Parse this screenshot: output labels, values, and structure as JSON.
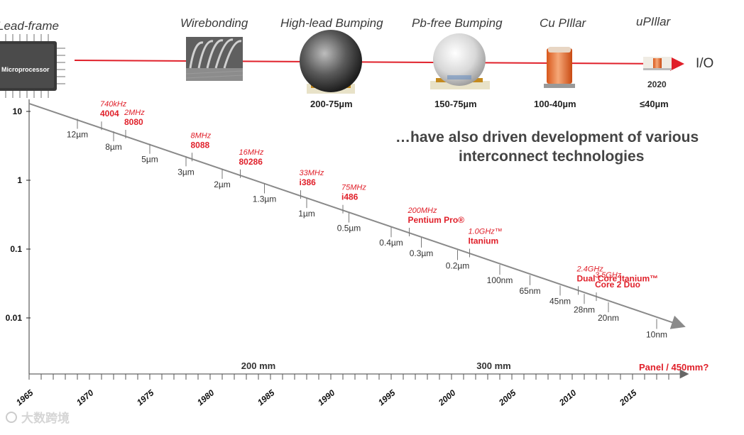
{
  "packaging": {
    "items": [
      {
        "label": "Lead-frame",
        "range": "",
        "chip_text": "Microprocessor"
      },
      {
        "label": "Wirebonding",
        "range": ""
      },
      {
        "label": "High-lead Bumping",
        "range": "200-75µm"
      },
      {
        "label": "Pb-free Bumping",
        "range": "150-75µm"
      },
      {
        "label": "Cu PIllar",
        "range": "100-40µm"
      },
      {
        "label": "uPIllar",
        "range": "≤40µm",
        "year": "2020"
      }
    ],
    "io_label": "I/O"
  },
  "headline": {
    "line1": "…have also driven development of various",
    "line2": "interconnect technologies"
  },
  "chart_data": {
    "type": "line",
    "title": "",
    "y_scale": "log",
    "ylim": [
      0.002,
      15
    ],
    "xlim": [
      1965,
      2020
    ],
    "y_ticks": [
      {
        "value": 10,
        "label": "10"
      },
      {
        "value": 1,
        "label": "1"
      },
      {
        "value": 0.1,
        "label": "0.1"
      },
      {
        "value": 0.01,
        "label": "0.01"
      }
    ],
    "x_ticks": [
      "1965",
      "1970",
      "1975",
      "1980",
      "1985",
      "1990",
      "1995",
      "2000",
      "2005",
      "2010",
      "2015"
    ],
    "trend": {
      "x": [
        1965,
        2018
      ],
      "y": [
        13,
        0.008
      ]
    },
    "process_nodes": [
      {
        "year": 1969,
        "value": 10.0,
        "label": "12µm"
      },
      {
        "year": 1972,
        "value": 6.5,
        "label": "8µm"
      },
      {
        "year": 1975,
        "value": 4.2,
        "label": "5µm"
      },
      {
        "year": 1978,
        "value": 2.7,
        "label": "3µm"
      },
      {
        "year": 1981,
        "value": 1.75,
        "label": "2µm"
      },
      {
        "year": 1984.5,
        "value": 1.05,
        "label": "1.3µm"
      },
      {
        "year": 1988,
        "value": 0.65,
        "label": "1µm"
      },
      {
        "year": 1991.5,
        "value": 0.4,
        "label": "0.5µm"
      },
      {
        "year": 1995,
        "value": 0.25,
        "label": "0.4µm"
      },
      {
        "year": 1997.5,
        "value": 0.18,
        "label": "0.3µm"
      },
      {
        "year": 2000.5,
        "value": 0.115,
        "label": "0.2µm"
      },
      {
        "year": 2004,
        "value": 0.071,
        "label": "100nm"
      },
      {
        "year": 2006.5,
        "value": 0.05,
        "label": "65nm"
      },
      {
        "year": 2009,
        "value": 0.036,
        "label": "45nm"
      },
      {
        "year": 2011,
        "value": 0.027,
        "label": "28nm"
      },
      {
        "year": 2013,
        "value": 0.02,
        "label": "20nm"
      },
      {
        "year": 2017,
        "value": 0.0115,
        "label": "10nm"
      }
    ],
    "processors": [
      {
        "year": 1971,
        "value": 7.6,
        "freq": "740kHz",
        "name": "4004"
      },
      {
        "year": 1973,
        "value": 5.6,
        "freq": "2MHz",
        "name": "8080"
      },
      {
        "year": 1978.5,
        "value": 2.5,
        "freq": "8MHz",
        "name": "8088"
      },
      {
        "year": 1982.5,
        "value": 1.38,
        "freq": "16MHz",
        "name": "80286"
      },
      {
        "year": 1987.5,
        "value": 0.69,
        "freq": "33MHz",
        "name": "i386"
      },
      {
        "year": 1991,
        "value": 0.42,
        "freq": "75MHz",
        "name": "i486"
      },
      {
        "year": 1996.5,
        "value": 0.2,
        "freq": "200MHz",
        "name": "Pentium Pro®"
      },
      {
        "year": 2001.5,
        "value": 0.1,
        "freq": "1.0GHz™",
        "name": "Itanium"
      },
      {
        "year": 2010.5,
        "value": 0.031,
        "freq": "2.4GHz",
        "name": "Dual Core Itanium™"
      },
      {
        "year": 2012,
        "value": 0.024,
        "freq": "3.5GHz",
        "name": "Core 2 Duo"
      }
    ],
    "wafer_labels": [
      {
        "year": 1984,
        "label": "200 mm"
      },
      {
        "year": 2003.5,
        "label": "300 mm"
      }
    ],
    "axis_end_label": "Panel / 450mm?"
  },
  "colors": {
    "accent": "#e0202a",
    "trend": "#8a8a8a",
    "axis": "#666666"
  },
  "watermark": "大数跨境"
}
